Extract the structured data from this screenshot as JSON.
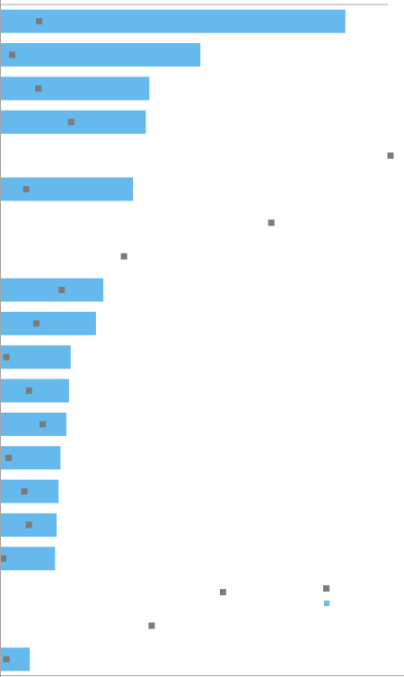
{
  "chart_data": {
    "type": "bar",
    "orientation": "horizontal",
    "title": "",
    "xlabel": "",
    "ylabel": "",
    "xlim": [
      0,
      100
    ],
    "grid": false,
    "legend_placement": "right",
    "colors": {
      "bar": "#65b9ec",
      "marker": "#7b7b7b",
      "axis": "#a6a6a6"
    },
    "series": [
      {
        "type": "bar",
        "values": [
          88.4,
          51.2,
          38.1,
          37.2,
          0,
          33.9,
          0,
          0,
          26.3,
          24.4,
          17.9,
          17.5,
          16.8,
          15.3,
          14.8,
          14.3,
          13.9,
          0,
          0,
          7.4
        ]
      },
      {
        "type": "marker",
        "values": [
          9.8,
          2.9,
          9.6,
          18.0,
          100.0,
          6.5,
          69.4,
          31.6,
          15.6,
          9.1,
          1.4,
          7.2,
          10.7,
          2.0,
          6.0,
          7.2,
          0.6,
          57.0,
          38.7,
          1.4
        ]
      }
    ]
  }
}
